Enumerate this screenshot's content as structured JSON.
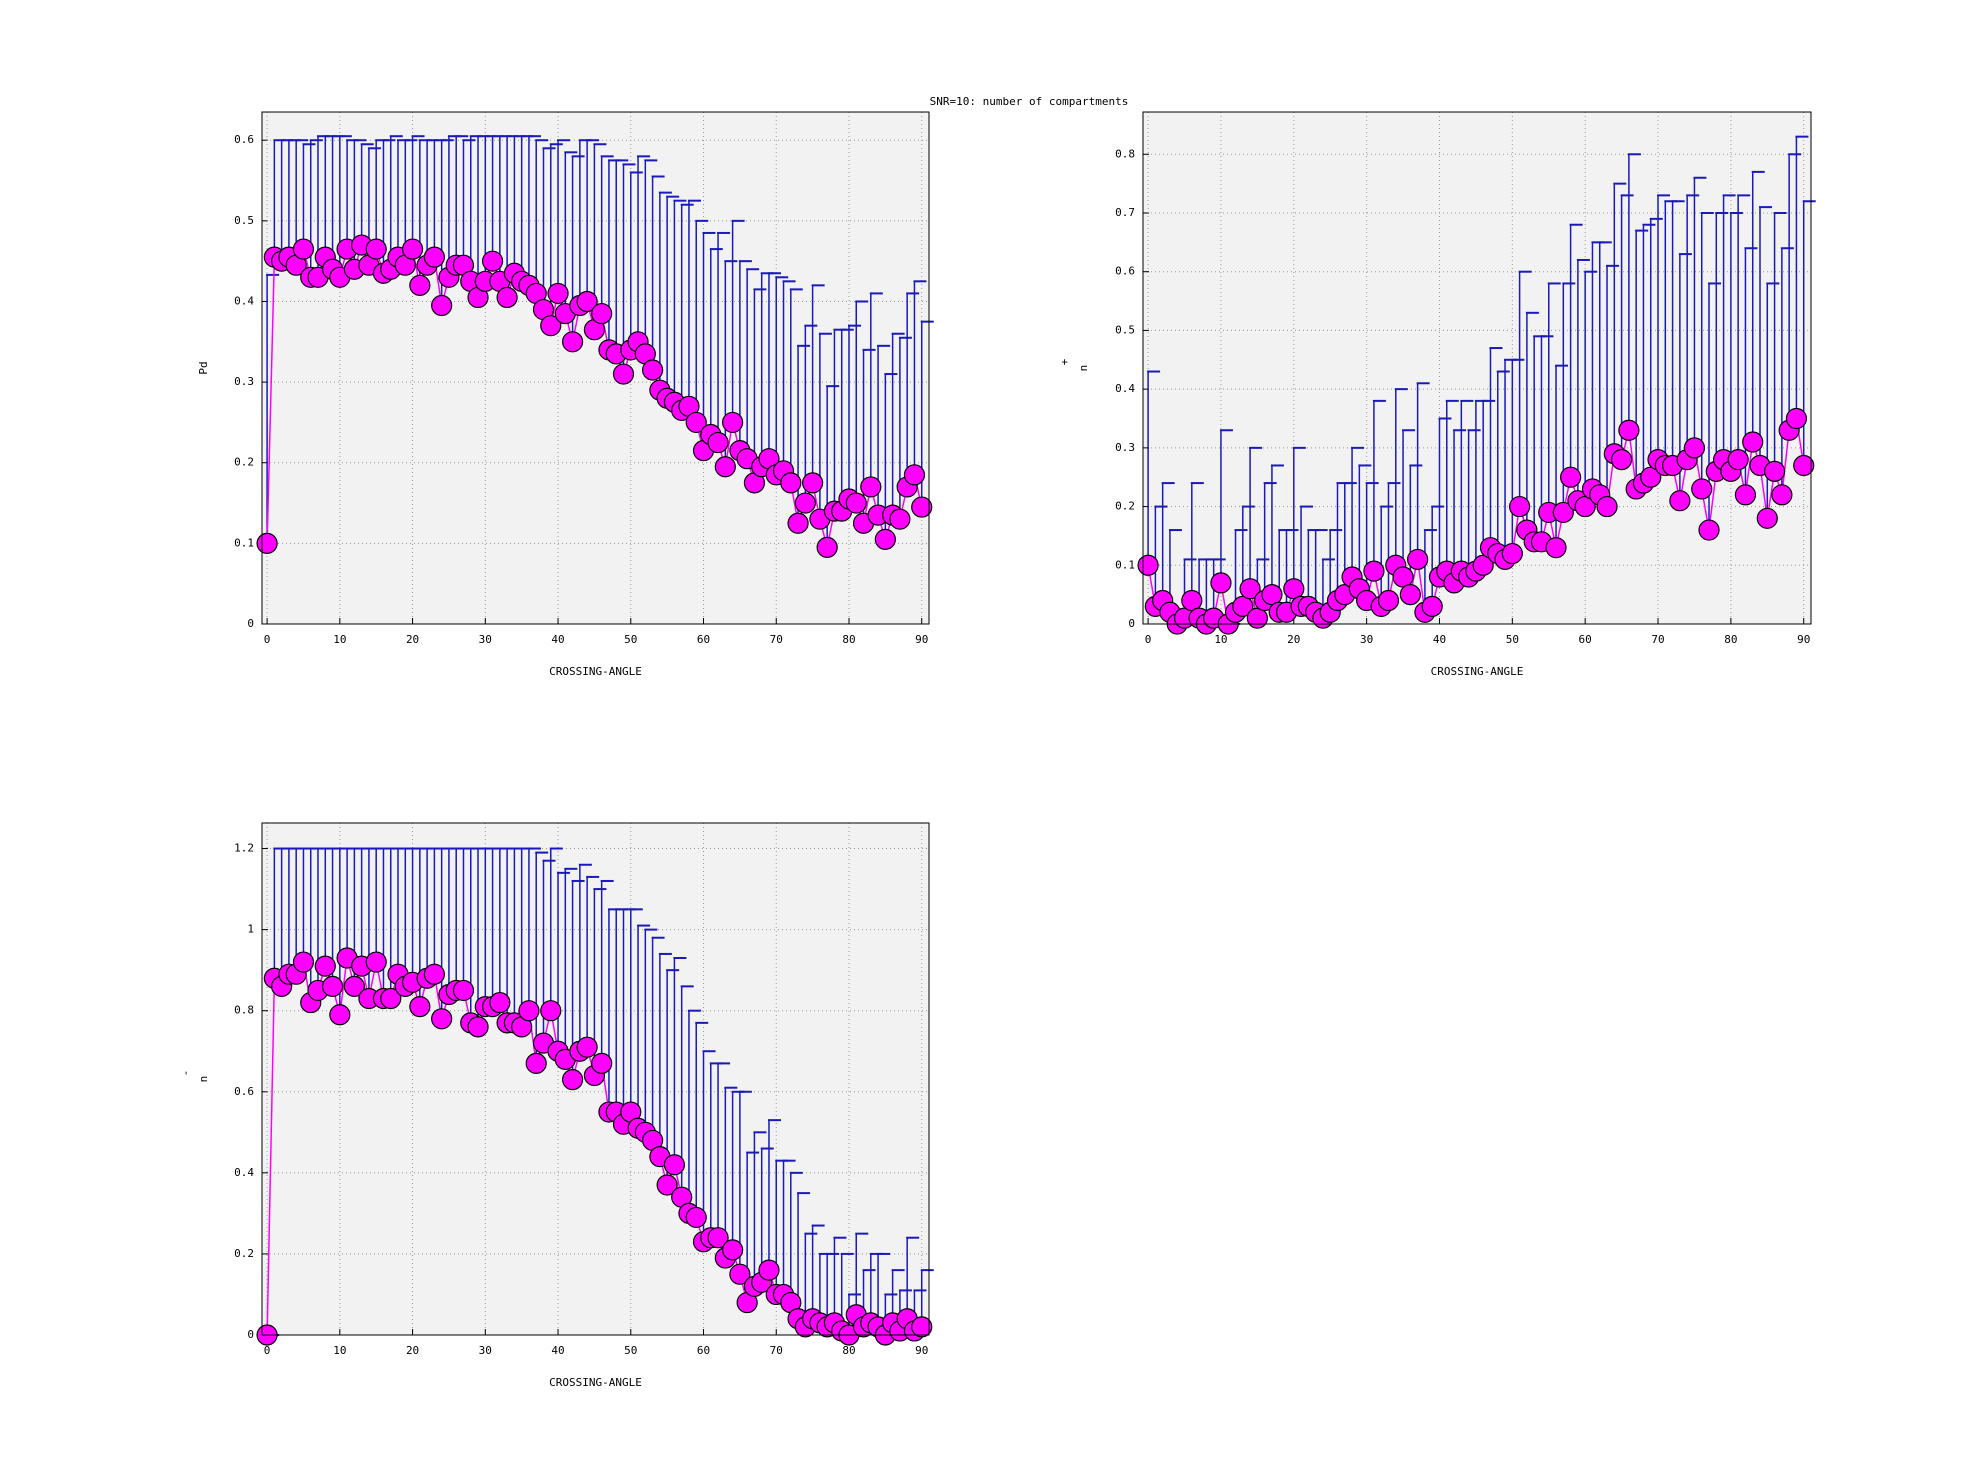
{
  "chart_data": [
    {
      "type": "errorbar",
      "title": "SNR=10: number of compartments",
      "xlabel": "CROSSING-ANGLE",
      "ylabel": "Pd",
      "xlim": [
        -0.7,
        91
      ],
      "xticks": [
        0,
        10,
        20,
        30,
        40,
        50,
        60,
        70,
        80,
        90
      ],
      "ylim": [
        0,
        0.635
      ],
      "yticks": [
        0,
        0.1,
        0.2,
        0.3,
        0.4,
        0.5,
        0.6
      ],
      "grid": true,
      "series": [
        {
          "color": "#ff00ff",
          "errorbar_color": "#1a1ab8",
          "values": [
            0.1,
            0.455,
            0.45,
            0.455,
            0.445,
            0.465,
            0.43,
            0.43,
            0.455,
            0.44,
            0.43,
            0.465,
            0.44,
            0.47,
            0.445,
            0.465,
            0.435,
            0.44,
            0.455,
            0.445,
            0.465,
            0.42,
            0.445,
            0.455,
            0.395,
            0.43,
            0.445,
            0.445,
            0.425,
            0.405,
            0.425,
            0.45,
            0.425,
            0.405,
            0.435,
            0.425,
            0.42,
            0.41,
            0.39,
            0.37,
            0.41,
            0.385,
            0.35,
            0.395,
            0.4,
            0.365,
            0.385,
            0.34,
            0.335,
            0.31,
            0.34,
            0.35,
            0.335,
            0.315,
            0.29,
            0.28,
            0.275,
            0.265,
            0.27,
            0.25,
            0.215,
            0.235,
            0.225,
            0.195,
            0.25,
            0.215,
            0.205,
            0.175,
            0.195,
            0.205,
            0.185,
            0.19,
            0.175,
            0.125,
            0.15,
            0.175,
            0.13,
            0.095,
            0.14,
            0.14,
            0.155,
            0.15,
            0.125,
            0.17,
            0.135,
            0.105,
            0.135,
            0.13,
            0.17,
            0.185,
            0.145
          ],
          "upper": [
            0.433,
            0.6,
            0.6,
            0.6,
            0.6,
            0.595,
            0.6,
            0.605,
            0.605,
            0.605,
            0.605,
            0.6,
            0.6,
            0.595,
            0.59,
            0.6,
            0.6,
            0.605,
            0.6,
            0.6,
            0.605,
            0.6,
            0.6,
            0.6,
            0.6,
            0.605,
            0.605,
            0.6,
            0.605,
            0.605,
            0.605,
            0.605,
            0.605,
            0.605,
            0.605,
            0.605,
            0.605,
            0.6,
            0.59,
            0.595,
            0.6,
            0.585,
            0.58,
            0.6,
            0.6,
            0.595,
            0.58,
            0.575,
            0.575,
            0.57,
            0.56,
            0.58,
            0.575,
            0.555,
            0.535,
            0.53,
            0.525,
            0.52,
            0.525,
            0.5,
            0.485,
            0.465,
            0.485,
            0.45,
            0.5,
            0.45,
            0.44,
            0.415,
            0.435,
            0.435,
            0.43,
            0.425,
            0.415,
            0.345,
            0.37,
            0.42,
            0.36,
            0.295,
            0.365,
            0.365,
            0.37,
            0.4,
            0.34,
            0.41,
            0.345,
            0.31,
            0.36,
            0.355,
            0.41,
            0.425,
            0.375
          ]
        }
      ]
    },
    {
      "type": "errorbar",
      "xlabel": "CROSSING-ANGLE",
      "ylabel": "n",
      "ylabel_superscript": "+",
      "xlim": [
        -0.7,
        91
      ],
      "xticks": [
        0,
        10,
        20,
        30,
        40,
        50,
        60,
        70,
        80,
        90
      ],
      "ylim": [
        0,
        0.872
      ],
      "yticks": [
        0,
        0.1,
        0.2,
        0.3,
        0.4,
        0.5,
        0.6,
        0.7,
        0.8
      ],
      "grid": true,
      "series": [
        {
          "color": "#ff00ff",
          "errorbar_color": "#1a1ab8",
          "values": [
            0.1,
            0.03,
            0.04,
            0.02,
            0.0,
            0.01,
            0.04,
            0.01,
            0.0,
            0.01,
            0.07,
            0.0,
            0.02,
            0.03,
            0.06,
            0.01,
            0.04,
            0.05,
            0.02,
            0.02,
            0.06,
            0.03,
            0.03,
            0.02,
            0.01,
            0.02,
            0.04,
            0.05,
            0.08,
            0.06,
            0.04,
            0.09,
            0.03,
            0.04,
            0.1,
            0.08,
            0.05,
            0.11,
            0.02,
            0.03,
            0.08,
            0.09,
            0.07,
            0.09,
            0.08,
            0.09,
            0.1,
            0.13,
            0.12,
            0.11,
            0.12,
            0.2,
            0.16,
            0.14,
            0.14,
            0.19,
            0.13,
            0.19,
            0.25,
            0.21,
            0.2,
            0.23,
            0.22,
            0.2,
            0.29,
            0.28,
            0.33,
            0.23,
            0.24,
            0.25,
            0.28,
            0.27,
            0.27,
            0.21,
            0.28,
            0.3,
            0.23,
            0.16,
            0.26,
            0.28,
            0.26,
            0.28,
            0.22,
            0.31,
            0.27,
            0.18,
            0.26,
            0.22,
            0.33,
            0.35,
            0.27
          ],
          "upper": [
            0.43,
            0.2,
            0.24,
            0.16,
            0.0,
            0.11,
            0.24,
            0.11,
            0.11,
            0.11,
            0.33,
            0.0,
            0.16,
            0.2,
            0.3,
            0.11,
            0.24,
            0.27,
            0.16,
            0.16,
            0.3,
            0.2,
            0.16,
            0.16,
            0.11,
            0.16,
            0.24,
            0.24,
            0.3,
            0.27,
            0.24,
            0.38,
            0.2,
            0.24,
            0.4,
            0.33,
            0.27,
            0.41,
            0.16,
            0.2,
            0.35,
            0.38,
            0.33,
            0.38,
            0.33,
            0.38,
            0.38,
            0.47,
            0.43,
            0.45,
            0.45,
            0.6,
            0.53,
            0.49,
            0.49,
            0.58,
            0.44,
            0.58,
            0.68,
            0.62,
            0.6,
            0.65,
            0.65,
            0.61,
            0.75,
            0.73,
            0.8,
            0.67,
            0.68,
            0.69,
            0.73,
            0.72,
            0.72,
            0.63,
            0.73,
            0.76,
            0.7,
            0.58,
            0.7,
            0.73,
            0.7,
            0.73,
            0.64,
            0.77,
            0.71,
            0.58,
            0.7,
            0.64,
            0.8,
            0.83,
            0.72
          ]
        }
      ]
    },
    {
      "type": "errorbar",
      "xlabel": "CROSSING-ANGLE",
      "ylabel": "n",
      "ylabel_superscript": "-",
      "xlim": [
        -0.7,
        91
      ],
      "xticks": [
        0,
        10,
        20,
        30,
        40,
        50,
        60,
        70,
        80,
        90
      ],
      "ylim": [
        0,
        1.263
      ],
      "yticks": [
        0,
        0.2,
        0.4,
        0.6,
        0.8,
        1,
        1.2
      ],
      "grid": true,
      "series": [
        {
          "color": "#ff00ff",
          "errorbar_color": "#1a1ab8",
          "values": [
            0.0,
            0.88,
            0.86,
            0.89,
            0.89,
            0.92,
            0.82,
            0.85,
            0.91,
            0.86,
            0.79,
            0.93,
            0.86,
            0.91,
            0.83,
            0.92,
            0.83,
            0.83,
            0.89,
            0.86,
            0.87,
            0.81,
            0.88,
            0.89,
            0.78,
            0.84,
            0.85,
            0.85,
            0.77,
            0.76,
            0.81,
            0.81,
            0.82,
            0.77,
            0.77,
            0.76,
            0.8,
            0.67,
            0.72,
            0.8,
            0.7,
            0.68,
            0.63,
            0.7,
            0.71,
            0.64,
            0.67,
            0.55,
            0.55,
            0.52,
            0.55,
            0.51,
            0.5,
            0.48,
            0.44,
            0.37,
            0.42,
            0.34,
            0.3,
            0.29,
            0.23,
            0.24,
            0.24,
            0.19,
            0.21,
            0.15,
            0.08,
            0.12,
            0.13,
            0.16,
            0.1,
            0.1,
            0.08,
            0.04,
            0.02,
            0.04,
            0.03,
            0.02,
            0.03,
            0.01,
            0.0,
            0.05,
            0.02,
            0.03,
            0.02,
            0.0,
            0.03,
            0.01,
            0.04,
            0.01,
            0.02
          ],
          "upper": [
            0.0,
            1.2,
            1.2,
            1.2,
            1.2,
            1.2,
            1.2,
            1.2,
            1.2,
            1.2,
            1.2,
            1.2,
            1.2,
            1.2,
            1.2,
            1.2,
            1.2,
            1.2,
            1.2,
            1.2,
            1.2,
            1.2,
            1.2,
            1.2,
            1.2,
            1.2,
            1.2,
            1.2,
            1.2,
            1.2,
            1.2,
            1.2,
            1.2,
            1.2,
            1.2,
            1.2,
            1.2,
            1.19,
            1.17,
            1.2,
            1.14,
            1.15,
            1.12,
            1.16,
            1.13,
            1.1,
            1.12,
            1.05,
            1.05,
            1.05,
            1.05,
            1.01,
            1.0,
            0.98,
            0.94,
            0.9,
            0.93,
            0.86,
            0.8,
            0.77,
            0.7,
            0.67,
            0.67,
            0.61,
            0.6,
            0.6,
            0.45,
            0.5,
            0.46,
            0.53,
            0.43,
            0.43,
            0.4,
            0.35,
            0.25,
            0.27,
            0.2,
            0.2,
            0.24,
            0.2,
            0.1,
            0.25,
            0.16,
            0.2,
            0.2,
            0.1,
            0.16,
            0.11,
            0.24,
            0.11,
            0.16
          ]
        }
      ]
    }
  ]
}
